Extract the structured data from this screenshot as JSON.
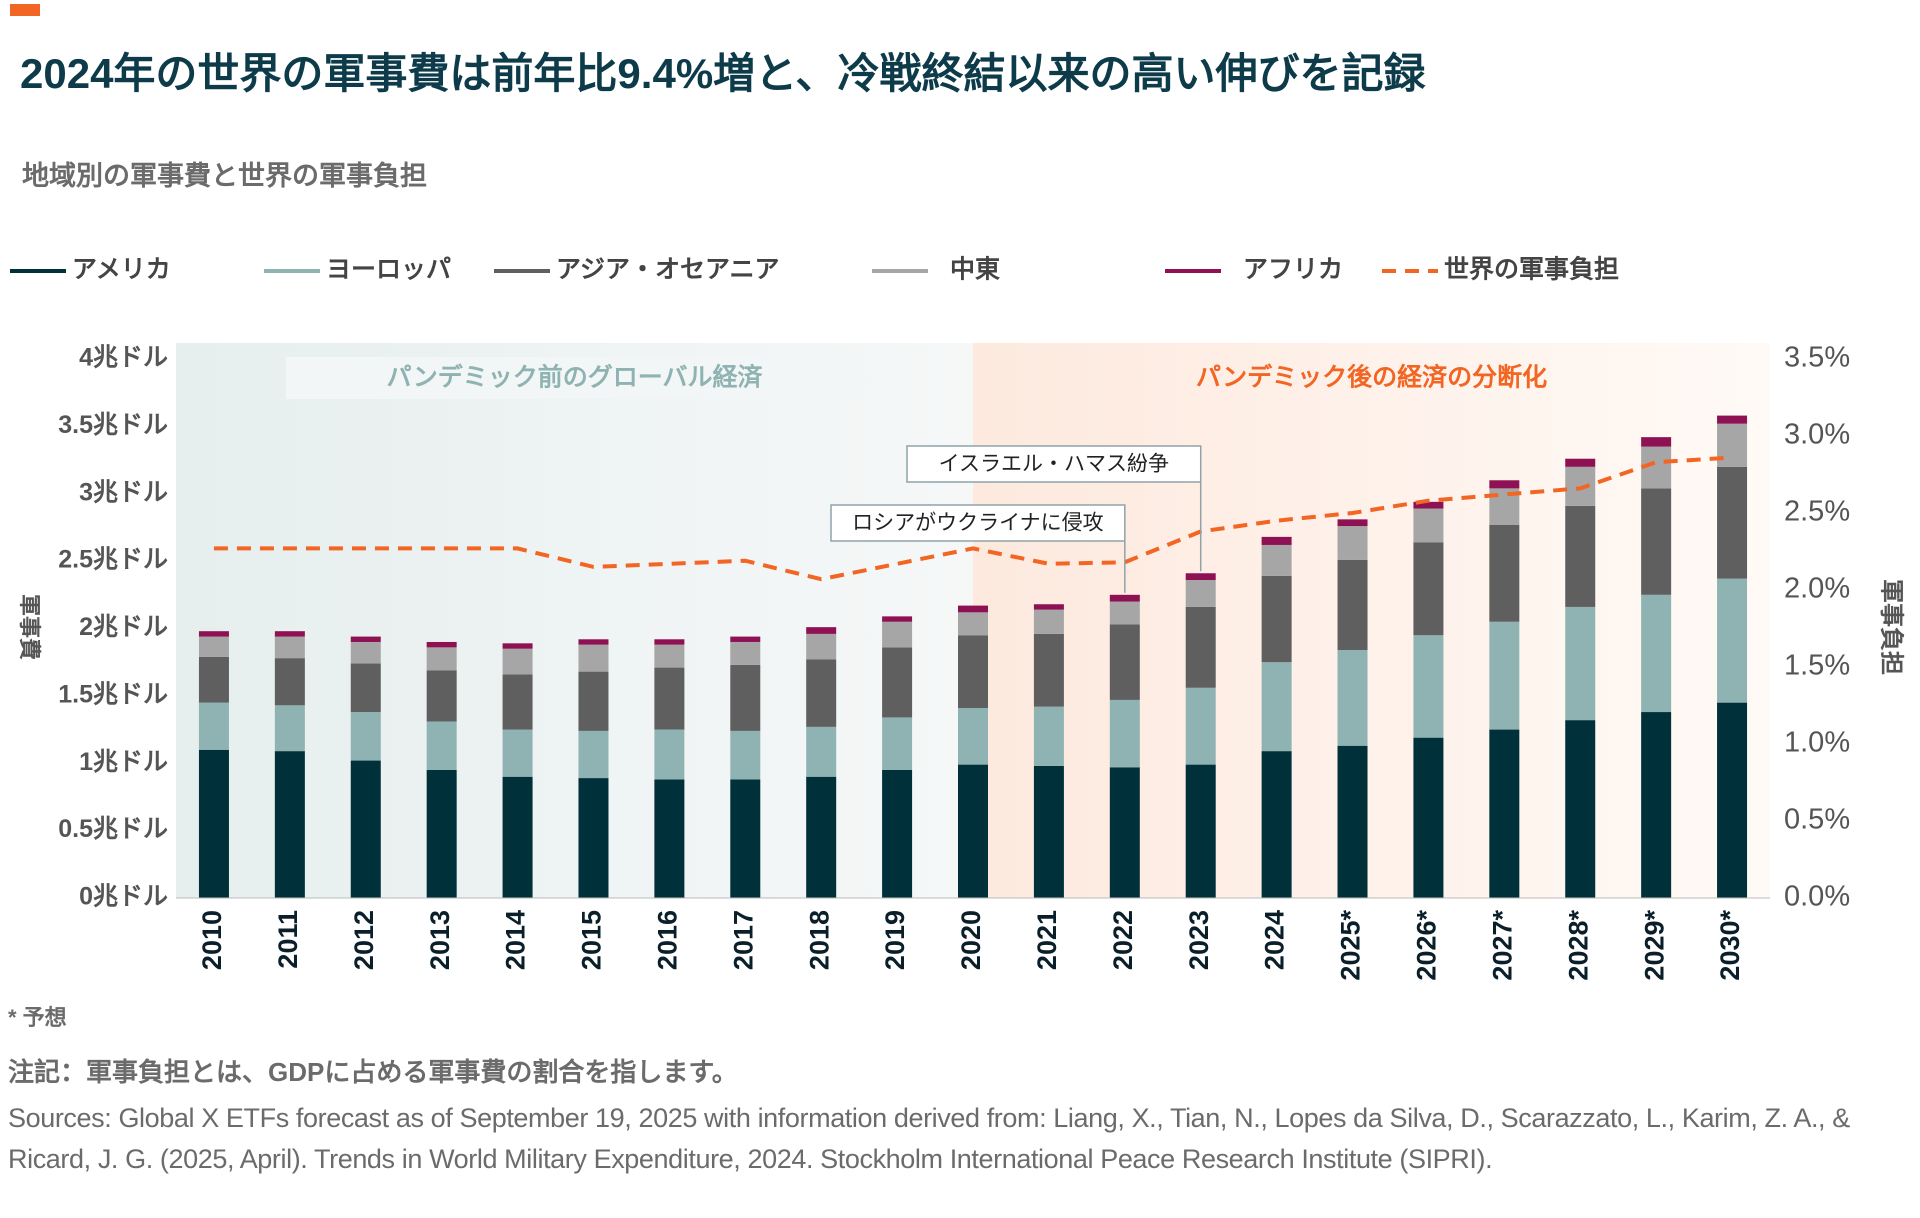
{
  "chart_data": {
    "type": "stacked_bar_line",
    "title": "2024年の世界の軍事費は前年比9.4%増と、冷戦終結以来の高い伸びを記録",
    "subtitle": "地域別の軍事費と世界の軍事負担",
    "y_label": "軍事費",
    "y2_label": "軍事負担",
    "categories": [
      "2010",
      "2011",
      "2012",
      "2013",
      "2014",
      "2015",
      "2016",
      "2017",
      "2018",
      "2019",
      "2020",
      "2021",
      "2022",
      "2023",
      "2024",
      "2025*",
      "2026*",
      "2027*",
      "2028*",
      "2029*",
      "2030*"
    ],
    "series": [
      {
        "name": "アメリカ",
        "color": "#00303a",
        "values": [
          1.1,
          1.09,
          1.02,
          0.95,
          0.9,
          0.89,
          0.88,
          0.88,
          0.9,
          0.95,
          0.99,
          0.98,
          0.97,
          0.99,
          1.09,
          1.13,
          1.19,
          1.25,
          1.32,
          1.38,
          1.45
        ]
      },
      {
        "name": "ヨーロッパ",
        "color": "#8fb3b2",
        "values": [
          0.35,
          0.34,
          0.36,
          0.36,
          0.35,
          0.35,
          0.37,
          0.36,
          0.37,
          0.39,
          0.42,
          0.44,
          0.5,
          0.57,
          0.66,
          0.71,
          0.76,
          0.8,
          0.84,
          0.87,
          0.92
        ]
      },
      {
        "name": "アジア・オセアニア",
        "color": "#5f5f5f",
        "values": [
          0.34,
          0.35,
          0.36,
          0.38,
          0.41,
          0.44,
          0.46,
          0.49,
          0.5,
          0.52,
          0.54,
          0.54,
          0.56,
          0.6,
          0.64,
          0.67,
          0.69,
          0.72,
          0.75,
          0.79,
          0.83
        ]
      },
      {
        "name": "中東",
        "color": "#a6a6a6",
        "values": [
          0.15,
          0.16,
          0.16,
          0.17,
          0.19,
          0.2,
          0.17,
          0.17,
          0.19,
          0.19,
          0.17,
          0.18,
          0.17,
          0.2,
          0.23,
          0.25,
          0.25,
          0.27,
          0.29,
          0.31,
          0.32
        ]
      },
      {
        "name": "アフリカ",
        "color": "#8e1253",
        "values": [
          0.04,
          0.04,
          0.04,
          0.04,
          0.04,
          0.04,
          0.04,
          0.04,
          0.05,
          0.04,
          0.05,
          0.04,
          0.05,
          0.05,
          0.06,
          0.05,
          0.05,
          0.06,
          0.06,
          0.07,
          0.06
        ]
      },
      {
        "name": "世界の軍事負担",
        "color": "#f26522",
        "axis": "y2",
        "line_style": "dashed",
        "values": [
          2.27,
          2.27,
          2.27,
          2.27,
          2.27,
          2.15,
          2.17,
          2.19,
          2.07,
          2.17,
          2.27,
          2.17,
          2.18,
          2.38,
          2.45,
          2.5,
          2.58,
          2.62,
          2.66,
          2.83,
          2.86
        ]
      }
    ],
    "ylim": [
      0,
      4
    ],
    "yticks": [
      {
        "value": 0,
        "label": "0兆ドル"
      },
      {
        "value": 0.5,
        "label": "0.5兆ドル"
      },
      {
        "value": 1,
        "label": "1兆ドル"
      },
      {
        "value": 1.5,
        "label": "1.5兆ドル"
      },
      {
        "value": 2,
        "label": "2兆ドル"
      },
      {
        "value": 2.5,
        "label": "2.5兆ドル"
      },
      {
        "value": 3,
        "label": "3兆ドル"
      },
      {
        "value": 3.5,
        "label": "3.5兆ドル"
      },
      {
        "value": 4,
        "label": "4兆ドル"
      }
    ],
    "y2lim": [
      0,
      3.5
    ],
    "y2ticks": [
      {
        "value": 0,
        "label": "0.0%"
      },
      {
        "value": 0.5,
        "label": "0.5%"
      },
      {
        "value": 1,
        "label": "1.0%"
      },
      {
        "value": 1.5,
        "label": "1.5%"
      },
      {
        "value": 2,
        "label": "2.0%"
      },
      {
        "value": 2.5,
        "label": "2.5%"
      },
      {
        "value": 3,
        "label": "3.0%"
      },
      {
        "value": 3.5,
        "label": "3.5%"
      }
    ],
    "regions": [
      {
        "label": "パンデミック前のグローバル経済",
        "from": "2010",
        "to": "2020",
        "color": "#8fb3b2"
      },
      {
        "label": "パンデミック後の経済の分断化",
        "from": "2020",
        "to": "2030*",
        "color": "#f26522"
      }
    ],
    "annotations": [
      {
        "text": "イスラエル・ハマス紛争",
        "x": "2023"
      },
      {
        "text": "ロシアがウクライナに侵攻",
        "x": "2022"
      }
    ],
    "footnote": "* 予想",
    "note": "注記：軍事負担とは、GDPに占める軍事費の割合を指します。",
    "source": "Sources: Global X ETFs forecast as of September 19, 2025 with information derived from: Liang, X., Tian, N., Lopes da Silva, D., Scarazzato, L., Karim, Z. A., & Ricard, J. G. (2025, April). Trends in World Military Expenditure, 2024. Stockholm International Peace Research Institute (SIPRI)."
  }
}
